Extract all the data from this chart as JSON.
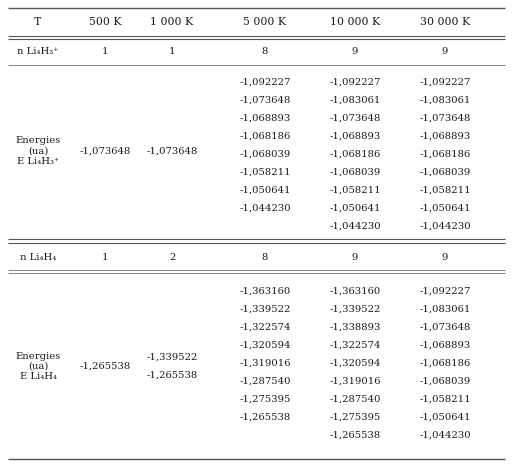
{
  "col_headers": [
    "T",
    "500 K",
    "1 000 K",
    "5 000 K",
    "10 000 K",
    "30 000 K"
  ],
  "section1": {
    "n_row_label": "n Li₄H₃⁺",
    "n_values": [
      "1",
      "1",
      "8",
      "9",
      "9"
    ],
    "energy_row_label": "Energies\n(ua)\nE Li₄H₃⁺",
    "energy_col1": [
      "-1,073648"
    ],
    "energy_col2": [
      "-1,073648"
    ],
    "energy_col3": [
      "-1,092227",
      "-1,073648",
      "-1,068893",
      "-1,068186",
      "-1,068039",
      "-1,058211",
      "-1,050641",
      "-1,044230"
    ],
    "energy_col4": [
      "-1,092227",
      "-1,083061",
      "-1,073648",
      "-1,068893",
      "-1,068186",
      "-1,068039",
      "-1,058211",
      "-1,050641",
      "-1,044230"
    ],
    "energy_col5": [
      "-1,092227",
      "-1,083061",
      "-1,073648",
      "-1,068893",
      "-1,068186",
      "-1,068039",
      "-1,058211",
      "-1,050641",
      "-1,044230"
    ]
  },
  "section2": {
    "n_row_label": "n Li₄H₄",
    "n_values": [
      "1",
      "2",
      "8",
      "9",
      "9"
    ],
    "energy_row_label": "Energies\n(ua)\nE Li₄H₄",
    "energy_col1": [
      "-1,265538"
    ],
    "energy_col2": [
      "-1,339522",
      "-1,265538"
    ],
    "energy_col3": [
      "-1,363160",
      "-1,339522",
      "-1,322574",
      "-1,320594",
      "-1,319016",
      "-1,287540",
      "-1,275395",
      "-1,265538"
    ],
    "energy_col4": [
      "-1,363160",
      "-1,339522",
      "-1,338893",
      "-1,322574",
      "-1,320594",
      "-1,319016",
      "-1,287540",
      "-1,275395",
      "-1,265538"
    ],
    "energy_col5": [
      "-1,092227",
      "-1,083061",
      "-1,073648",
      "-1,068893",
      "-1,068186",
      "-1,068039",
      "-1,058211",
      "-1,050641",
      "-1,044230"
    ]
  },
  "text_color": "#1a1a1a",
  "line_color": "#555555",
  "font_size": 7.2,
  "header_font_size": 7.8
}
